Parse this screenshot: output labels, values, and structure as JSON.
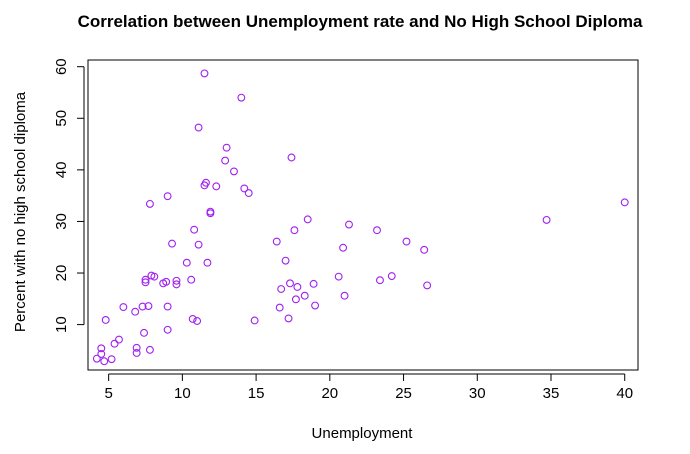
{
  "chart_data": {
    "type": "scatter",
    "title": "Correlation between Unemployment rate and No High School Diploma",
    "xlabel": "Unemployment",
    "ylabel": "Percent with no high school diploma",
    "xlim": [
      3.6,
      40.9
    ],
    "ylim": [
      1.2,
      61.3
    ],
    "xticks": [
      5,
      10,
      15,
      20,
      25,
      30,
      35,
      40
    ],
    "yticks": [
      10,
      20,
      30,
      40,
      50,
      60
    ],
    "point_color": "#a020f0",
    "point_style": "open-circle",
    "grid": false,
    "legend": "none",
    "points": [
      [
        4.2,
        3.4
      ],
      [
        4.5,
        4.3
      ],
      [
        4.5,
        5.4
      ],
      [
        4.7,
        2.9
      ],
      [
        4.8,
        10.9
      ],
      [
        5.2,
        3.3
      ],
      [
        5.4,
        6.3
      ],
      [
        5.7,
        7.1
      ],
      [
        6.0,
        13.4
      ],
      [
        6.8,
        12.5
      ],
      [
        6.9,
        5.5
      ],
      [
        6.9,
        4.5
      ],
      [
        7.3,
        13.5
      ],
      [
        7.4,
        8.4
      ],
      [
        7.5,
        18.2
      ],
      [
        7.5,
        18.7
      ],
      [
        7.7,
        13.6
      ],
      [
        7.8,
        33.4
      ],
      [
        7.8,
        5.1
      ],
      [
        7.9,
        19.5
      ],
      [
        8.1,
        19.3
      ],
      [
        8.7,
        18.0
      ],
      [
        8.9,
        18.3
      ],
      [
        9.0,
        9.0
      ],
      [
        9.0,
        13.5
      ],
      [
        9.0,
        34.9
      ],
      [
        9.3,
        25.7
      ],
      [
        9.6,
        18.5
      ],
      [
        9.6,
        17.8
      ],
      [
        10.3,
        22.0
      ],
      [
        10.6,
        18.7
      ],
      [
        10.7,
        11.1
      ],
      [
        10.8,
        28.4
      ],
      [
        11.0,
        10.7
      ],
      [
        11.1,
        48.2
      ],
      [
        11.1,
        25.5
      ],
      [
        11.5,
        58.7
      ],
      [
        11.5,
        37.0
      ],
      [
        11.6,
        37.5
      ],
      [
        11.7,
        22.0
      ],
      [
        11.9,
        31.6
      ],
      [
        11.9,
        31.9
      ],
      [
        12.3,
        36.8
      ],
      [
        12.9,
        41.8
      ],
      [
        13.0,
        44.3
      ],
      [
        13.5,
        39.7
      ],
      [
        14.0,
        54.0
      ],
      [
        14.2,
        36.4
      ],
      [
        14.5,
        35.5
      ],
      [
        14.9,
        10.8
      ],
      [
        16.4,
        26.1
      ],
      [
        16.6,
        13.3
      ],
      [
        16.7,
        16.9
      ],
      [
        17.0,
        22.4
      ],
      [
        17.2,
        11.2
      ],
      [
        17.3,
        18.0
      ],
      [
        17.4,
        42.4
      ],
      [
        17.6,
        28.3
      ],
      [
        17.7,
        14.9
      ],
      [
        17.8,
        17.3
      ],
      [
        18.3,
        15.6
      ],
      [
        18.5,
        30.4
      ],
      [
        18.9,
        17.9
      ],
      [
        19.0,
        13.7
      ],
      [
        20.6,
        19.3
      ],
      [
        20.9,
        24.9
      ],
      [
        21.0,
        15.6
      ],
      [
        21.3,
        29.4
      ],
      [
        23.2,
        28.3
      ],
      [
        23.4,
        18.6
      ],
      [
        24.2,
        19.4
      ],
      [
        25.2,
        26.1
      ],
      [
        26.4,
        24.5
      ],
      [
        26.6,
        17.6
      ],
      [
        34.7,
        30.3
      ],
      [
        40.0,
        33.7
      ]
    ]
  }
}
